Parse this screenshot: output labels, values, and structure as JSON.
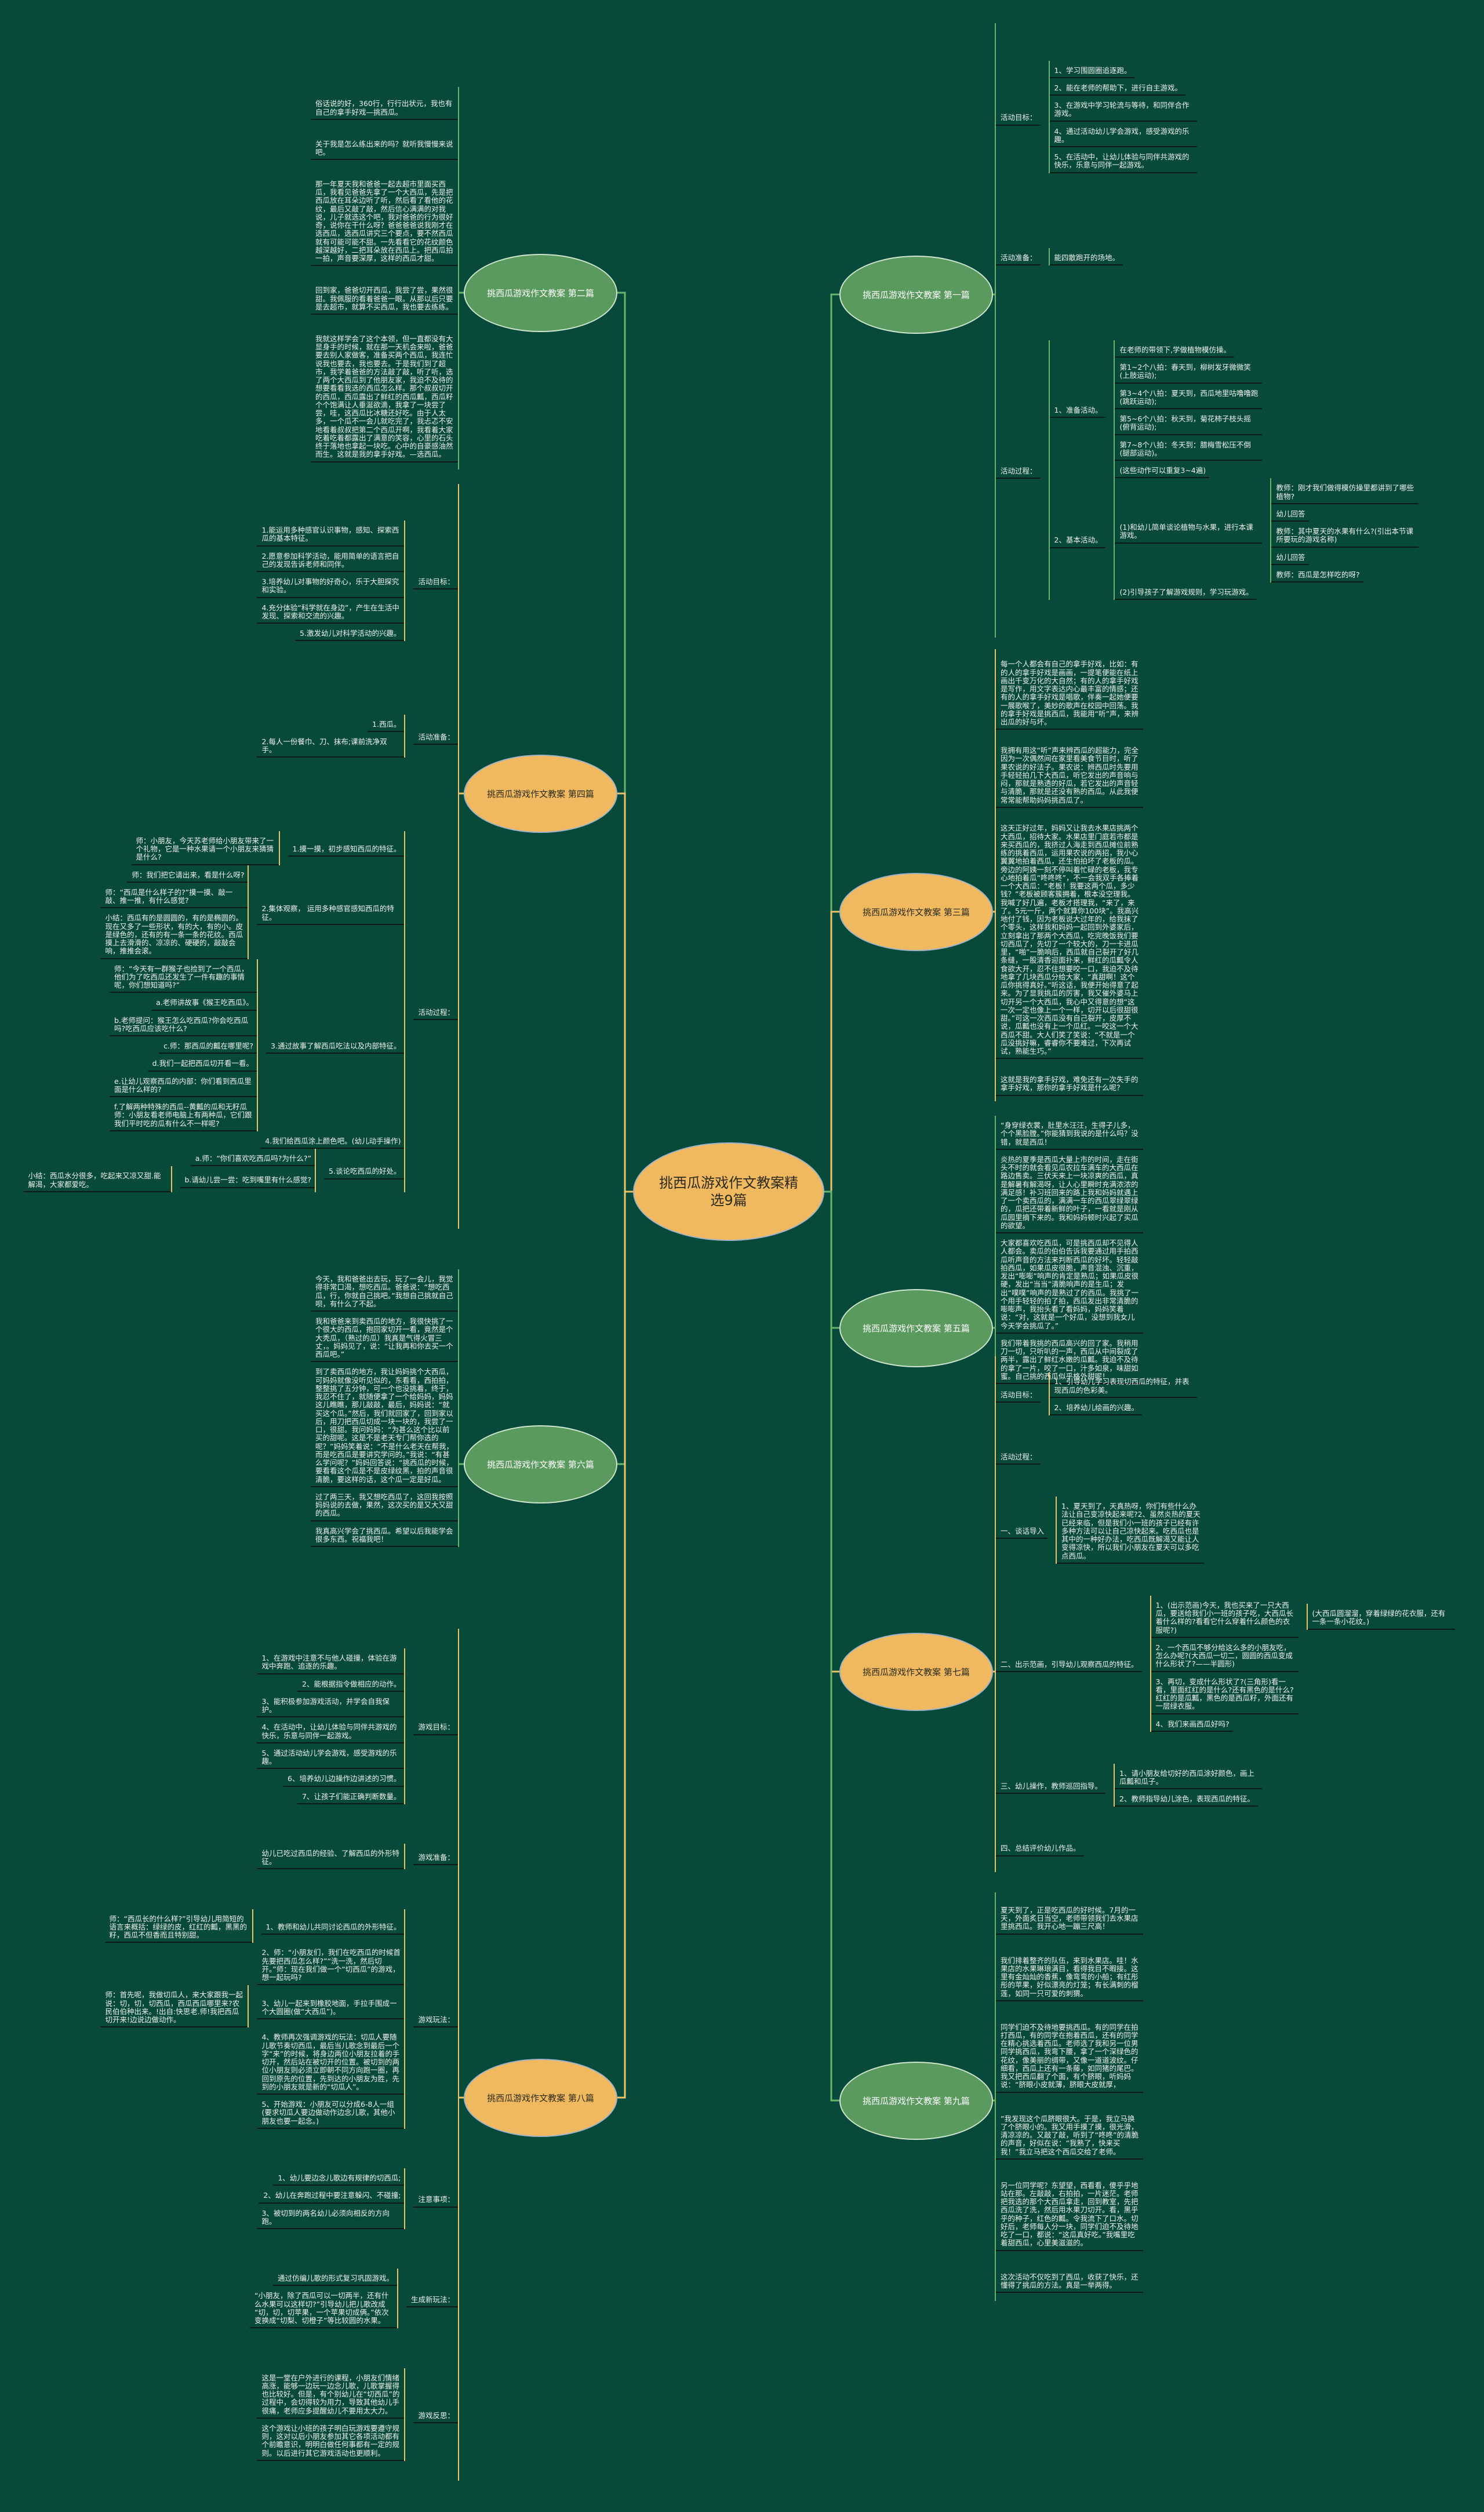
{
  "title": "挑西瓜游戏作文教案精选9篇",
  "colors": {
    "background": "#074a3a",
    "green_topic": "#5a9a5e",
    "orange_topic": "#f0b960",
    "green_line": "#6cb36f",
    "orange_line": "#e9c46a"
  },
  "branches": [
    {
      "title": "挑西瓜游戏作文教案 第一篇",
      "style": "green",
      "children": [
        {
          "text": "活动目标：",
          "children": [
            {
              "text": "1、学习围圆圈追逐跑。"
            },
            {
              "text": "2、能在老师的帮助下，进行自主游戏。"
            },
            {
              "text": "3、在游戏中学习轮流与等待，和同伴合作游戏。"
            },
            {
              "text": "4、通过活动幼儿学会游戏，感受游戏的乐趣。"
            },
            {
              "text": "5、在活动中，让幼儿体验与同伴共游戏的快乐，乐意与同伴一起游戏。"
            }
          ]
        },
        {
          "text": "活动准备：",
          "children": [
            {
              "text": "能四散跑开的场地。"
            }
          ]
        },
        {
          "text": "活动过程：",
          "children": [
            {
              "text": "1、准备活动。",
              "children": [
                {
                  "text": "在老师的带领下,学做植物模仿操。"
                },
                {
                  "text": "第1~2个八拍：春天到，柳树发牙微微笑(上肢运动);"
                },
                {
                  "text": "第3~4个八拍：夏天到，西瓜地里咕噜噜跑(跳跃运动);"
                },
                {
                  "text": "第5~6个八拍：秋天到，菊花柿子枝头摇(俯背运动);"
                },
                {
                  "text": "第7~8个八拍：冬天到：腊梅雪松压不倒(腿部运动)。"
                },
                {
                  "text": "(这些动作可以重复3~4遍)"
                }
              ]
            },
            {
              "text": "2、基本活动。",
              "children": [
                {
                  "text": "(1)和幼儿简单谈论植物与水果，进行本课游戏。",
                  "children": [
                    {
                      "text": "教师：刚才我们做得模仿操里都讲到了哪些植物?"
                    },
                    {
                      "text": "幼儿回答"
                    },
                    {
                      "text": "教师：其中夏天的水果有什么?(引出本节课所要玩的游戏名称)"
                    },
                    {
                      "text": "幼儿回答"
                    },
                    {
                      "text": "教师：西瓜是怎样吃的呀?"
                    }
                  ]
                },
                {
                  "text": "(2)引导孩子了解游戏规则，学习玩游戏。"
                }
              ]
            }
          ]
        }
      ]
    },
    {
      "title": "挑西瓜游戏作文教案 第二篇",
      "style": "green",
      "children": [
        {
          "text": "俗话说的好，360行，行行出状元，我也有自己的拿手好戏—挑西瓜。"
        },
        {
          "text": "关于我是怎么练出来的吗？就听我慢慢来说吧。"
        },
        {
          "text": "那一年夏天我和爸爸一起去超市里面买西瓜，我看见爸爸先拿了一个大西瓜，先是把西瓜放在耳朵边听了听，然后看了看他的花纹，最后又敲了敲，然后信心满满的对我说，儿子就选这个吧，我对爸爸的行为很好奇，说你在干什么呀？爸爸爸爸说我刚才在选西瓜，选西瓜讲究三个要点，要不然西瓜就有可能可能不甜。一先看看它的花纹颜色越深越好，二把耳朵放在西瓜上。把西瓜拍一拍，声音要深厚，这样的西瓜才甜。"
        },
        {
          "text": "回到家，爸爸切开西瓜，我尝了尝，果然很甜。我佩服的看着爸爸一眼。从那以后只要是去超市，就算不买西瓜，我也要去练练。"
        },
        {
          "text": "我就这样学会了这个本领，但一直都没有大显身手的时候，就在那一天机会来啦，爸爸要去别人家做客，准备买两个西瓜，我连忙说我也要去，我也要去。于是我们到了超市，我学着爸爸的方法敲了敲，听了听，选了两个大西瓜到了他朋友家，我迫不及待的想要看看我选的西瓜怎么样。那个叔叔切开的西瓜，西瓜露出了鲜红的西瓜瓤，西瓜籽个个饱满让人垂涎欲滴，我拿了一块尝了尝，哇，这西瓜比冰糖还好吃。由于人太多，一个瓜不一会儿就吃完了，我忐忑不安地看着叔叔把第二个西瓜开啊，我看着大家吃着吃着都露出了满意的笑容，心里的石头终于落地也拿起一块吃。心中的自豪感油然而生。这就是我的拿手好戏。—选西瓜。"
        }
      ]
    },
    {
      "title": "挑西瓜游戏作文教案 第三篇",
      "style": "orange",
      "children": [
        {
          "text": "每一个人都会有自己的拿手好戏，比如：有的人的拿手好戏是画画，一提笔便能在纸上画出千变万化的大自然；有的人的拿手好戏是写作，用文字表达内心最丰富的情感；还有的人的拿手好戏是唱歌，伴奏一起她便要一展歌喉了，美妙的歌声在校园中回荡。我的拿手好戏是挑西瓜，我能用“听”声，来辨出瓜的好与坏。"
        },
        {
          "text": "我拥有用这“听”声来辨西瓜的超能力，完全因为一次偶然间在家里看美食节目时，听了果农说的好法子。果农说：辨西瓜时先要用手轻轻拍几下大西瓜，听它发出的声音响与闷，那就是熟透的好瓜，若它发出的声音轻与清脆，那就是还没有熟的西瓜。从此我便常常能帮助妈妈挑西瓜了。"
        },
        {
          "text": "这天正好过年，妈妈又让我去水果店挑两个大西瓜，招待大家。水果店里门庭若市都是来买西瓜的，我挤过人海走到西瓜摊位前熟练的挑着西瓜，运用果农说的两招，我小心翼翼地拍着西瓜，还生怕拍坏了老板的瓜。旁边的阿姨一刻不停叫着忙碌的老板，我专心地拍着瓜“咚咚咚”，不一会我双手各捧着一个大西瓜：“老板！我要这两个瓜，多少钱？”老板被顾客簇拥着，根本没空理我。我喊了好几遍，老板才搭理我，“来了，来了。5元一斤，两个就算你100块”。我高兴地付了钱，因为老板说大过年的，给我抹了个零头，这样我和妈妈一起回到外婆家后，立刻拿出了那两个大西瓜，吃完晚饭我们要切西瓜了，先切了一个较大的，刀一卡进瓜里，“啪”一脆响后，西瓜就自己裂开了好几条缝，一股清香迎面扑来，鲜红的瓜瓤令人食欲大开，忍不住想要咬一口，我迫不及待地拿了几块西瓜分给大家，“真甜啊！这个瓜你挑得真好。”听这话，我便开始得意了起来。为了显我挑瓜的厉害，我又催外婆马上切开另一个大西瓜，我心中又得意的想“这一次一定也像上一个一样，切开以后很甜很甜。”可这一次西瓜没有自己裂开，皮厚不说，瓜瓤也没有上一个瓜红。一咬这一个大西瓜不甜。大人们笑了笑说：“不就是一个瓜没挑好嘛，睿睿你不要难过，下次再试试，熟能生巧。”"
        },
        {
          "text": "这就是我的拿手好戏，难免还有一次失手的拿手好戏，那你的拿手好戏是什么呢？"
        }
      ]
    },
    {
      "title": "挑西瓜游戏作文教案 第四篇",
      "style": "orange",
      "children": [
        {
          "text": "活动目标：",
          "children": [
            {
              "text": "1.能运用多种感官认识事物，感知、探索西瓜的基本特征。"
            },
            {
              "text": "2.愿意参加科学活动，能用简单的语言把自己的发现告诉老师和同伴。"
            },
            {
              "text": "3.培养幼儿对事物的好奇心，乐于大胆探究和实验。"
            },
            {
              "text": "4.充分体验“科学就在身边”，产生在生活中发现、探索和交流的兴趣。"
            },
            {
              "text": "5.激发幼儿对科学活动的兴趣。"
            }
          ]
        },
        {
          "text": "活动准备：",
          "children": [
            {
              "text": "1.西瓜。"
            },
            {
              "text": "2.每人一份餐巾、刀、抹布;课前洗净双手。"
            }
          ]
        },
        {
          "text": "活动过程：",
          "children": [
            {
              "text": "1.摸一摸，初步感知西瓜的特征。",
              "children": [
                {
                  "text": "师：小朋友，今天苏老师给小朋友带来了一个礼物，它是一种水果请一个小朋友来猜猜是什么?"
                }
              ]
            },
            {
              "text": "2.集体观察， 运用多种感官感知西瓜的特征。",
              "children": [
                {
                  "text": "师：我们把它请出来，看是什么呀?"
                },
                {
                  "text": "师：“西瓜是什么样子的?”摸一摸、敲一敲、推一推，有什么感觉?"
                },
                {
                  "text": "小结：西瓜有的是圆圆的，有的是椭圆的。现在又多了一些形状，有的大，有的小。皮是绿色的，还有的有一条一条的花纹。西瓜摸上去滑滑的、凉凉的、硬硬的，敲敲会响，推推会滚。"
                }
              ]
            },
            {
              "text": "3.通过故事了解西瓜吃法以及内部特征。",
              "children": [
                {
                  "text": "师：“今天有一群猴子也捡到了一个西瓜，他们为了吃西瓜还发生了一件有趣的事情呢，你们想知道吗?”"
                },
                {
                  "text": "a.老师讲故事《猴王吃西瓜》。"
                },
                {
                  "text": "b.老师提问：猴王怎么吃西瓜?你会吃西瓜吗?吃西瓜应该吃什么?"
                },
                {
                  "text": "c.师：那西瓜的瓤在哪里呢?"
                },
                {
                  "text": "d.我们一起把西瓜切开看一看。"
                },
                {
                  "text": "e.让幼儿观察西瓜的内部：你们看到西瓜里面是什么样的?"
                },
                {
                  "text": "f.了解两种特殊的西瓜--黄瓤的瓜和无籽瓜师：小朋友看老师电脑上有两种瓜，它们跟我们平时吃的瓜有什么不一样呢?"
                }
              ]
            },
            {
              "text": "4.我们给西瓜涂上颜色吧。(幼儿动手操作)"
            },
            {
              "text": "5.谈论吃西瓜的好处。",
              "children": [
                {
                  "text": "a.师：“你们喜欢吃西瓜吗?为什么?”"
                },
                {
                  "text": "b.请幼儿尝一尝：吃到嘴里有什么感觉?",
                  "children": [
                    {
                      "text": "小结：西瓜水分很多，吃起来又凉又甜.能解渴，大家都爱吃。"
                    }
                  ]
                }
              ]
            }
          ]
        }
      ]
    },
    {
      "title": "挑西瓜游戏作文教案 第五篇",
      "style": "green",
      "children": [
        {
          "text": "“身穿绿衣裳，肚里水汪汪，生得子儿多，个个黑脸膛。”你能猜到我说的是什么吗？没错，就是西瓜！"
        },
        {
          "text": "炎热的夏季是西瓜大量上市的时间，走在街头不时的就会看见瓜农拉车满车的大西瓜在路边售卖。三伏天来上一块凉爽的西瓜，真是解暑有解渴呀，让人心里瞬时充满浓浓的满足感！补习班回来的路上我和妈妈就遇上了一个卖西瓜的，满满一车的西瓜翠绿翠绿的，瓜把还带着新鲜的叶子，一看就是刚从瓜园里摘下来的。我和妈妈顿时兴起了买瓜的欲望。"
        },
        {
          "text": "大家都喜欢吃西瓜，可是挑西瓜却不见得人人都会。卖瓜的伯伯告诉我要通过用手拍西瓜听声音的方法来判断西瓜的好坏。轻轻敲拍西瓜，如果瓜皮很脆，声音混浊、沉重，发出“嘭嘭”响声的肯定是熟瓜；如果瓜皮很硬，发出“当当”清脆响声的是生瓜；发出“噗噗”响声的是熟过了的西瓜。我挑了一个用手轻轻的拍了拍，西瓜发出非常清脆的嘭嘭声，我抬头看了看妈妈，妈妈笑着说：“对，这就是一个好瓜，没想到我女儿今天学会挑瓜了。”"
        },
        {
          "text": "我们带着我挑的西瓜高兴的回了家。我稍用刀一切，只听叭的一声，西瓜从中间裂成了两半，露出了鲜红水嫩的瓜瓤。我迫不及待的拿了一片，咬了一口，汁多如泉，味甜如蜜。自己挑的西瓜似乎格外甜呢！"
        }
      ]
    },
    {
      "title": "挑西瓜游戏作文教案 第六篇",
      "style": "green",
      "children": [
        {
          "text": "今天，我和爸爸出去玩，玩了一会儿，我觉得非常口渴，想吃西瓜。爸爸说：“想吃西瓜，行，你就自己挑吧。”我想自己挑就自己呗，有什么了不起。"
        },
        {
          "text": "我和爸爸来到卖西瓜的地方，我很快挑了一个很大的西瓜，抱回家切开一看，竟然是个大秃瓜，（熟过的瓜）我真是气得火冒三丈，。妈妈见了，说：“让我再和你去买一个西瓜吧。”"
        },
        {
          "text": "到了卖西瓜的地方，我让妈妈挑个大西瓜，可妈妈就像没听见似的，东看看，西拍拍，整整挑了五分钟，可一个也没挑着，终于，我忍不住了，就随便拿了一个给妈妈，妈妈这儿瞧瞧，那儿敲敲，最后，妈妈说：“就买这个瓜。”然后，我们就回家了，回到家以后，用刀把西瓜切成一块一块的，我尝了一口，很甜。我问妈妈：“为甚么这个比以前买的甜呢。这是不是老天专门帮你选的呢？”妈妈笑着说：“不是什么老天在帮我，而是吃西瓜是要讲究学问的。”我说：“有甚么学问呢？”妈妈回答说：“挑西瓜的时候，要看看这个瓜是不是皮绿纹黑，拍的声音很清脆，要这样的话，这个瓜一定是好瓜。"
        },
        {
          "text": "过了两三天，我又想吃西瓜了，这回我按照妈妈说的去做，果然，这次买的是又大又甜的西瓜。"
        },
        {
          "text": "我真高兴学会了挑西瓜。希望以后我能学会很多东西。祝福我吧！"
        }
      ]
    },
    {
      "title": "挑西瓜游戏作文教案 第七篇",
      "style": "orange",
      "children": [
        {
          "text": "活动目标：",
          "children": [
            {
              "text": "1、引导幼儿学习表现切西瓜的特征，并表现西瓜的色彩美。"
            },
            {
              "text": "2、培养幼儿绘画的兴趣。"
            }
          ]
        },
        {
          "text": "活动过程："
        },
        {
          "text": "一、谈话导入",
          "children": [
            {
              "text": "1、夏天到了，天真热呀，你们有些什么办法让自己变凉快起来呢?2、虽然炎热的夏天已经来临，但是我们小一班的孩子已经有许多种方法可以让自己凉快起来。吃西瓜也是其中的一种好办法，吃西瓜既解渴又能让人变得凉快，所以我们小朋友在夏天可以多吃点西瓜。"
            }
          ]
        },
        {
          "text": "二、出示范画，引导幼儿观察西瓜的特征。",
          "children": [
            {
              "text": "1、(出示范画)今天，我也买来了一只大西瓜，要送给我们小一班的孩子吃，大西瓜长着什么样的?看看它什么穿着什么颜色的衣服呢?)",
              "children": [
                {
                  "text": "(大西瓜圆溜溜，穿着绿绿的花衣服，还有一条一条小花纹。)"
                }
              ]
            },
            {
              "text": "2、一个西瓜不够分给这么多的小朋友吃，怎么办呢?(大西瓜一切二，圆圆的西瓜变成什么形状了?——半圆形)"
            },
            {
              "text": "3、再切，变成什么形状了?(三角形)看一看，里面红红的是什么?还有黑色的是什么?红红的是瓜瓤，黑色的是西瓜籽，外面还有一层绿衣服。"
            },
            {
              "text": "4、我们来画西瓜好吗?"
            }
          ]
        },
        {
          "text": "三、幼儿操作，教师巡回指导。",
          "children": [
            {
              "text": "1、请小朋友给切好的西瓜涂好颜色，画上瓜瓤和瓜子。"
            },
            {
              "text": "2、教师指导幼儿涂色，表现西瓜的特征。"
            }
          ]
        },
        {
          "text": "四、总结评价幼儿作品。"
        }
      ]
    },
    {
      "title": "挑西瓜游戏作文教案 第八篇",
      "style": "orange",
      "children": [
        {
          "text": "游戏目标：",
          "children": [
            {
              "text": "1、在游戏中注意不与他人碰撞，体验在游戏中奔跑、追逐的乐趣。"
            },
            {
              "text": "2、能根据指令做相应的动作。"
            },
            {
              "text": "3、能积极参加游戏活动，并学会自我保护。"
            },
            {
              "text": "4、在活动中，让幼儿体验与同伴共游戏的快乐，乐意与同伴一起游戏。"
            },
            {
              "text": "5、通过活动幼儿学会游戏，感受游戏的乐趣。"
            },
            {
              "text": "6、培养幼儿边操作边讲述的习惯。"
            },
            {
              "text": "7、让孩子们能正确判断数量。"
            }
          ]
        },
        {
          "text": "游戏准备：",
          "children": [
            {
              "text": "幼儿已吃过西瓜的经验、了解西瓜的外形特征。"
            }
          ]
        },
        {
          "text": "游戏玩法：",
          "children": [
            {
              "text": "1、教师和幼儿共同讨论西瓜的外形特征。",
              "children": [
                {
                  "text": "师：“西瓜长的什么样?”引导幼儿用简短的语言来概括：绿绿的皮，红红的瓤，黑黑的籽，西瓜不但香而且特别甜。"
                }
              ]
            },
            {
              "text": "2、师：“小朋友们，我们在吃西瓜的时候首先要把西瓜怎么样?”“洗一洗，然后切开。”师：现在我们做一个“切西瓜”的游戏，想一起玩吗?"
            },
            {
              "text": "3、幼儿一起来到橡胶地面，手拉手围成一个大圆圈(做“大西瓜”)。",
              "children": [
                {
                  "text": "师：首先呢，我做切瓜人，来大家跟我一起说：切，切，切西瓜，西瓜西瓜哪里来?农民伯伯种出来。!出自:快思老.师!我把西瓜切开来!边说边做动作。"
                }
              ]
            },
            {
              "text": "4、教师再次强调游戏的玩法：切瓜人要随儿歌节奏切西瓜，最后当儿歌念到最后一个字“来”的时候，将身边两位小朋友拉着的手切开，然后站在被切开的位置。被切到的两位小朋友则必须立即朝不同方向跑一圈，再回到原先的位置，先到达的小朋友为胜，先到的小朋友就是新的“切瓜人”。"
            },
            {
              "text": "5、开始游戏：小朋友可以分成6-8人一组(要求切瓜人要边做动作边念儿歌，其他小朋友也要一起念。)"
            }
          ]
        },
        {
          "text": "注意事项：",
          "children": [
            {
              "text": "1、幼儿要边念儿歌边有规律的切西瓜;"
            },
            {
              "text": "2、幼儿在奔跑过程中要注意躲闪、不碰撞;"
            },
            {
              "text": "3、被切到的两名幼儿必须向相反的方向跑。"
            }
          ]
        },
        {
          "text": "生成新玩法：",
          "children": [
            {
              "text": "通过仿编儿歌的形式复习巩固游戏。"
            },
            {
              "text": "“小朋友，除了西瓜可以一切两半，还有什么水果可以这样切?”引导幼儿把儿歌改成 “切，切，切苹果，一个苹果切成俩。”依次变换成“切梨、切橙子”等比较圆的水果。"
            }
          ]
        },
        {
          "text": "游戏反思：",
          "children": [
            {
              "text": "这是一堂在户外进行的课程，小朋友们情绪高涨，能够一边玩一边念儿歌，儿歌掌握得也比较好。但是，有个别幼儿在“切西瓜”的过程中，会切得较为用力，导致其他幼儿手很痛，老师应多提醒幼儿不要用太大力。"
            },
            {
              "text": "这个游戏让小班的孩子明白玩游戏要遵守规则，这对以后小朋友参加其它各项活动都有个前瞻意识，明明白做任何事都有一定的规则。以后进行其它游戏活动也更顺利。"
            }
          ]
        }
      ]
    },
    {
      "title": "挑西瓜游戏作文教案 第九篇",
      "style": "green",
      "children": [
        {
          "text": "夏天到了，正是吃西瓜的好时候。7月的一天，外面炙日当空，老师带领我们去水果店里挑西瓜。我开心地一蹦三尺高！"
        },
        {
          "text": "我们排着整齐的队伍，来到水果店。哇！水果店的水果琳琅满目，看得我目不暇接。这里有金灿灿的香蕉，像弯弯的小船；有红彤彤的苹果，好似漂亮的灯笼；有长满刺的榴莲，如同一只可爱的刺猬。"
        },
        {
          "text": "同学们迫不及待地要挑西瓜。有的同学在拍打西瓜，有的同学在抱着西瓜，还有的同学在精心挑选着西瓜。老师选了我和另一位男同学挑西瓜，我弯下腰，拿了一个深绿色的花纹，像美丽的绸带，又像一道道波纹。仔细看，西瓜上还有一条藤，如同猪的尾巴。我又把西瓜翻了个面，有个脐眼，听妈妈说：“脐眼小皮就薄，脐眼大皮就厚，"
        },
        {
          "text": "”我发现这个瓜脐眼很大。于是，我立马换了个脐眼小的。我又用手摸了摸，很光滑，清凉凉的。又敲了敲，听到了“咚咚”的清脆的声音，好似在说：“我熟了，快来买我！”我立马把这个西瓜交给了老师。"
        },
        {
          "text": "另一位同学呢？东望望，西看看，傻乎乎地站在那。左敲敲，右拍拍，一片迷茫。老师把我选的那个大西瓜拿走，回到教室，先把西瓜洗了洗，然后用水果刀切开。看，黑乎乎的种子，红色的瓤。令我流下了口水。切好后，老师每人分一块，同学们迫不及待地吃了一口，都说：“这瓜真好吃。”我嘴里吃着甜西瓜，心里美滋滋的。"
        },
        {
          "text": "这次活动不仅吃到了西瓜，收获了快乐，还懂得了挑瓜的方法。真是一举两得。"
        }
      ]
    }
  ]
}
